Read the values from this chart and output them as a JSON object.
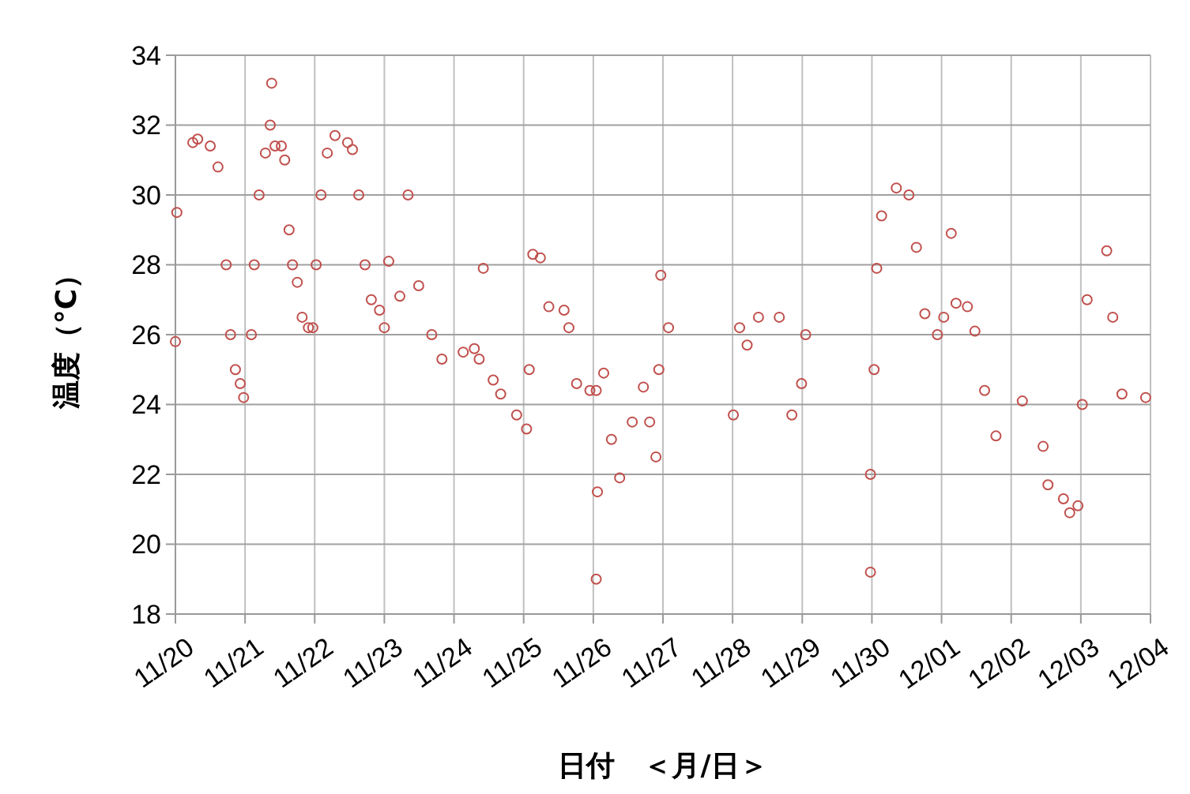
{
  "chart_data": {
    "type": "scatter",
    "xlabel": "日付　＜月/日＞",
    "ylabel": "温度（°C）",
    "xlim": [
      "--11-20",
      "--12-04"
    ],
    "xticks": [
      {
        "value": "--11-20",
        "label": "11/20"
      },
      {
        "value": "--11-21",
        "label": "11/21"
      },
      {
        "value": "--11-22",
        "label": "11/22"
      },
      {
        "value": "--11-23",
        "label": "11/23"
      },
      {
        "value": "--11-24",
        "label": "11/24"
      },
      {
        "value": "--11-25",
        "label": "11/25"
      },
      {
        "value": "--11-26",
        "label": "11/26"
      },
      {
        "value": "--11-27",
        "label": "11/27"
      },
      {
        "value": "--11-28",
        "label": "11/28"
      },
      {
        "value": "--11-29",
        "label": "11/29"
      },
      {
        "value": "--11-30",
        "label": "11/30"
      },
      {
        "value": "--12-01",
        "label": "12/01"
      },
      {
        "value": "--12-02",
        "label": "12/02"
      },
      {
        "value": "--12-03",
        "label": "12/03"
      },
      {
        "value": "--12-04",
        "label": "12/04"
      }
    ],
    "ylim": [
      18,
      34
    ],
    "yticks": [
      18,
      20,
      22,
      24,
      26,
      28,
      30,
      32,
      34
    ],
    "grid": true,
    "marker": "circle",
    "series": [
      {
        "color": "#c0504d",
        "x": [
          "--11-20T00:00",
          "--11-20T00:30",
          "--11-20T06:00",
          "--11-20T07:40",
          "--11-20T12:00",
          "--11-20T14:40",
          "--11-20T17:30",
          "--11-20T19:00",
          "--11-20T20:40",
          "--11-20T22:20",
          "--11-20T23:30",
          "--11-21T02:10",
          "--11-21T03:10",
          "--11-21T04:50",
          "--11-21T07:00",
          "--11-21T08:40",
          "--11-21T09:10",
          "--11-21T10:20",
          "--11-21T12:30",
          "--11-21T13:40",
          "--11-21T15:10",
          "--11-21T16:20",
          "--11-21T18:00",
          "--11-21T19:40",
          "--11-21T21:50",
          "--11-21T23:20",
          "--11-22T00:30",
          "--11-22T02:10",
          "--11-22T04:20",
          "--11-22T07:00",
          "--11-22T11:20",
          "--11-22T13:00",
          "--11-22T15:10",
          "--11-22T17:20",
          "--11-22T19:30",
          "--11-22T22:20",
          "--11-23T00:00",
          "--11-23T01:30",
          "--11-23T05:20",
          "--11-23T08:10",
          "--11-23T11:50",
          "--11-23T16:20",
          "--11-23T19:50",
          "--11-24T03:10",
          "--11-24T07:00",
          "--11-24T08:40",
          "--11-24T10:05",
          "--11-24T13:30",
          "--11-24T16:05",
          "--11-24T21:35",
          "--11-25T01:00",
          "--11-25T01:55",
          "--11-25T03:10",
          "--11-25T05:45",
          "--11-25T08:40",
          "--11-25T13:55",
          "--11-25T15:35",
          "--11-25T18:15",
          "--11-25T22:50",
          "--11-26T01:00",
          "--11-26T01:00",
          "--11-26T01:25",
          "--11-26T03:35",
          "--11-26T06:15",
          "--11-26T09:05",
          "--11-26T13:25",
          "--11-26T17:15",
          "--11-26T19:25",
          "--11-26T21:35",
          "--11-26T22:35",
          "--11-26T23:15",
          "--11-27T01:55",
          "--11-28T00:15",
          "--11-28T02:25",
          "--11-28T05:00",
          "--11-28T08:55",
          "--11-28T16:05",
          "--11-28T20:25",
          "--11-28T23:45",
          "--11-29T01:10",
          "--11-29T23:30",
          "--11-29T23:30",
          "--11-30T00:45",
          "--11-30T01:40",
          "--11-30T03:20",
          "--11-30T08:25",
          "--11-30T12:45",
          "--11-30T15:20",
          "--11-30T18:15",
          "--11-30T22:35",
          "--12-01T00:45",
          "--12-01T03:20",
          "--12-01T05:00",
          "--12-01T08:55",
          "--12-01T11:30",
          "--12-01T14:50",
          "--12-01T18:45",
          "--12-02T03:50",
          "--12-02T11:00",
          "--12-02T12:40",
          "--12-02T18:00",
          "--12-02T20:10",
          "--12-02T23:00",
          "--12-03T00:30",
          "--12-03T02:10",
          "--12-03T08:55",
          "--12-03T11:00",
          "--12-03T14:10",
          "--12-03T22:20"
        ],
        "values": [
          25.8,
          29.5,
          31.5,
          31.6,
          31.4,
          30.8,
          28.0,
          26.0,
          25.0,
          24.6,
          24.2,
          26.0,
          28.0,
          30.0,
          31.2,
          32.0,
          33.2,
          31.4,
          31.4,
          31.0,
          29.0,
          28.0,
          27.5,
          26.5,
          26.2,
          26.2,
          28.0,
          30.0,
          31.2,
          31.7,
          31.5,
          31.3,
          30.0,
          28.0,
          27.0,
          26.7,
          26.2,
          28.1,
          27.1,
          30.0,
          27.4,
          26.0,
          25.3,
          25.5,
          25.6,
          25.3,
          27.9,
          24.7,
          24.3,
          23.7,
          23.3,
          25.0,
          28.3,
          28.2,
          26.8,
          26.7,
          26.2,
          24.6,
          24.4,
          24.4,
          19.0,
          21.5,
          24.9,
          23.0,
          21.9,
          23.5,
          24.5,
          23.5,
          22.5,
          25.0,
          27.7,
          26.2,
          23.7,
          26.2,
          25.7,
          26.5,
          26.5,
          23.7,
          24.6,
          26.0,
          19.2,
          22.0,
          25.0,
          27.9,
          29.4,
          30.2,
          30.0,
          28.5,
          26.6,
          26.0,
          26.5,
          28.9,
          26.9,
          26.8,
          26.1,
          24.4,
          23.1,
          24.1,
          22.8,
          21.7,
          21.3,
          20.9,
          21.1,
          24.0,
          27.0,
          28.4,
          26.5,
          24.3,
          24.2
        ]
      }
    ]
  }
}
